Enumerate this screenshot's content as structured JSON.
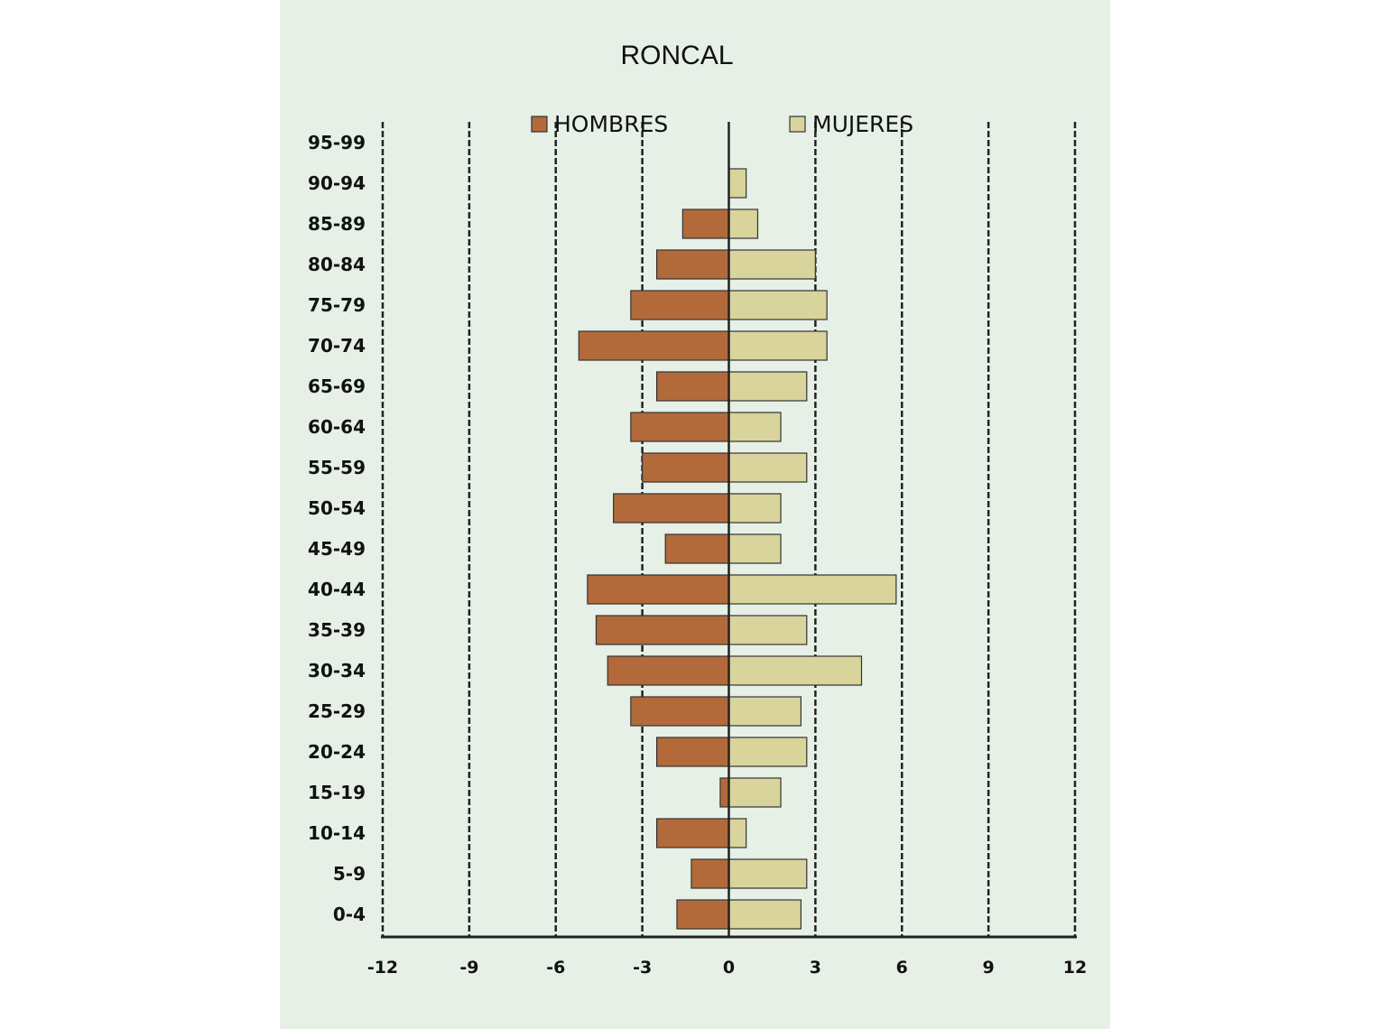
{
  "chart_data": {
    "type": "bar",
    "orientation": "horizontal",
    "title": "RONCAL",
    "categories": [
      "95-99",
      "90-94",
      "85-89",
      "80-84",
      "75-79",
      "70-74",
      "65-69",
      "60-64",
      "55-59",
      "50-54",
      "45-49",
      "40-44",
      "35-39",
      "30-34",
      "25-29",
      "20-24",
      "15-19",
      "10-14",
      "5-9",
      "0-4"
    ],
    "series": [
      {
        "name": "HOMBRES",
        "color": "#b36a3a",
        "values": [
          0,
          0,
          -1.6,
          -2.5,
          -3.4,
          -5.2,
          -2.5,
          -3.4,
          -3.0,
          -4.0,
          -2.2,
          -4.9,
          -4.6,
          -4.2,
          -3.4,
          -2.5,
          -0.3,
          -2.5,
          -1.3,
          -1.8
        ]
      },
      {
        "name": "MUJERES",
        "color": "#d8d49c",
        "values": [
          0,
          0.6,
          1.0,
          3.0,
          3.4,
          3.4,
          2.7,
          1.8,
          2.7,
          1.8,
          1.8,
          5.8,
          2.7,
          4.6,
          2.5,
          2.7,
          1.8,
          0.6,
          2.7,
          2.5
        ]
      }
    ],
    "xlim": [
      -12,
      12
    ],
    "xticks": [
      "-12",
      "-9",
      "-6",
      "-3",
      "0",
      "3",
      "6",
      "9",
      "12"
    ],
    "xtick_values": [
      -12,
      -9,
      -6,
      -3,
      0,
      3,
      6,
      9,
      12
    ],
    "grid": true,
    "legend_position": "top"
  },
  "colors": {
    "background": "#e6f0e6",
    "hombres": "#b36a3a",
    "mujeres": "#d8d49c",
    "bar_outline": "#333333",
    "axis": "#222222"
  }
}
